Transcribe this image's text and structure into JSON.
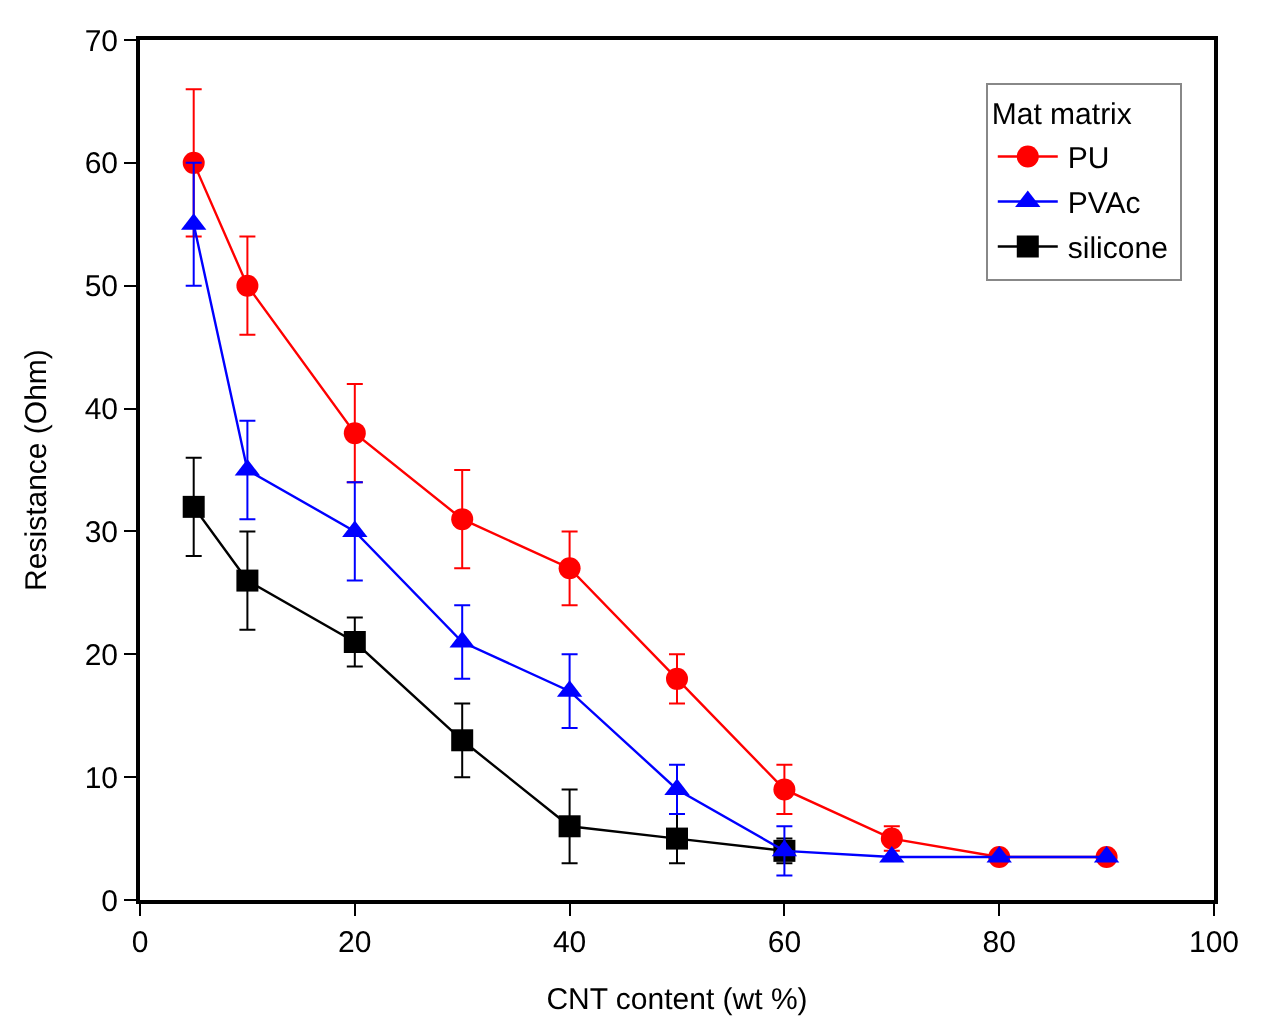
{
  "chart_data": {
    "type": "line",
    "xlabel": "CNT content (wt %)",
    "ylabel": "Resistance (Ohm)",
    "legend_title": "Mat matrix",
    "x": [
      5,
      10,
      20,
      30,
      40,
      50,
      60,
      70,
      80,
      90
    ],
    "series": [
      {
        "name": "PU",
        "color": "#ff0000",
        "marker": "circle",
        "values": [
          60,
          50,
          38,
          31,
          27,
          18,
          9,
          5,
          3.5,
          3.5
        ],
        "errors": [
          6,
          4,
          4,
          4,
          3,
          2,
          2,
          1,
          null,
          null
        ]
      },
      {
        "name": "PVAc",
        "color": "#0000ff",
        "marker": "triangle",
        "values": [
          55,
          35,
          30,
          21,
          17,
          9,
          4,
          3.5,
          3.5,
          3.5
        ],
        "errors": [
          5,
          4,
          4,
          3,
          3,
          2,
          2,
          null,
          null,
          null
        ]
      },
      {
        "name": "silicone",
        "color": "#000000",
        "marker": "square",
        "values": [
          32,
          26,
          21,
          13,
          6,
          5,
          4,
          null,
          null,
          null
        ],
        "errors": [
          4,
          4,
          2,
          3,
          3,
          2,
          1,
          null,
          null,
          null
        ]
      }
    ],
    "xlim": [
      0,
      100
    ],
    "xticks": [
      0,
      20,
      40,
      60,
      80,
      100
    ],
    "ylim": [
      0,
      70
    ],
    "yticks": [
      0,
      10,
      20,
      30,
      40,
      50,
      60,
      70
    ],
    "legend": "top right",
    "line_style": "solid"
  }
}
